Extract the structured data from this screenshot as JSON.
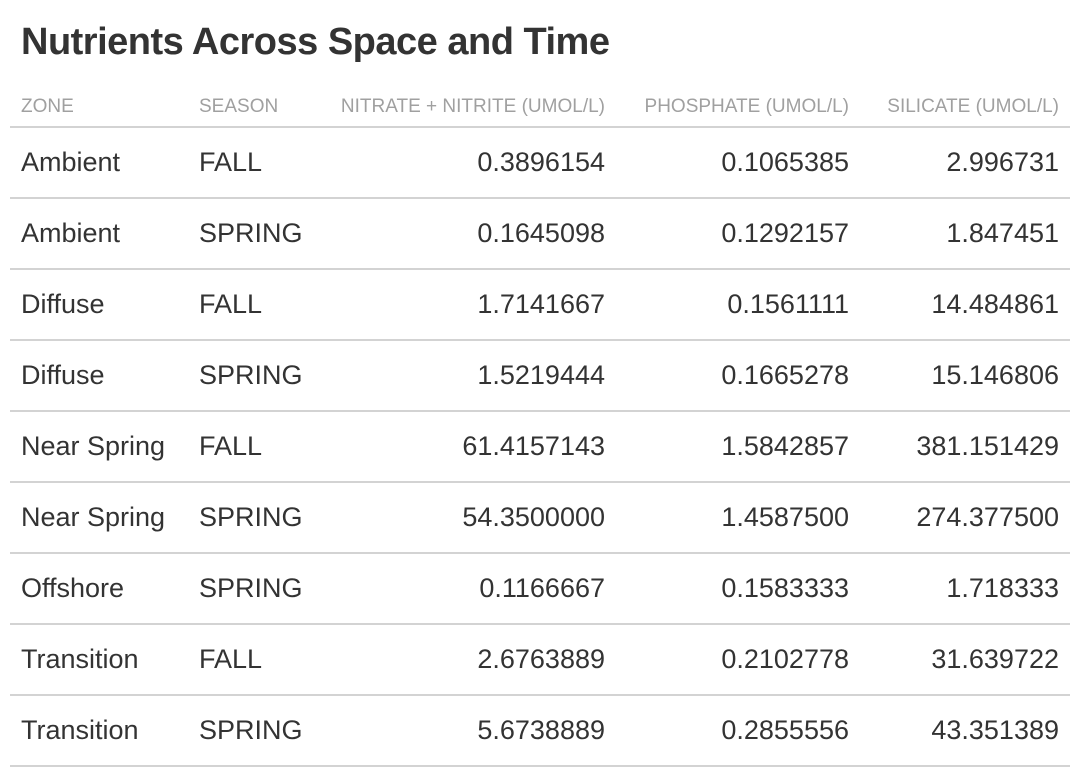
{
  "chart_data": {
    "type": "table",
    "title": "Nutrients Across Space and Time",
    "columns": [
      {
        "key": "zone",
        "label": "ZONE",
        "align": "left"
      },
      {
        "key": "season",
        "label": "SEASON",
        "align": "left"
      },
      {
        "key": "nitrate",
        "label": "NITRATE + NITRITE (UMOL/L)",
        "align": "right"
      },
      {
        "key": "phosphate",
        "label": "PHOSPHATE (UMOL/L)",
        "align": "right"
      },
      {
        "key": "silicate",
        "label": "SILICATE (UMOL/L)",
        "align": "right"
      }
    ],
    "rows": [
      {
        "zone": "Ambient",
        "season": "FALL",
        "nitrate": "0.3896154",
        "phosphate": "0.1065385",
        "silicate": "2.996731"
      },
      {
        "zone": "Ambient",
        "season": "SPRING",
        "nitrate": "0.1645098",
        "phosphate": "0.1292157",
        "silicate": "1.847451"
      },
      {
        "zone": "Diffuse",
        "season": "FALL",
        "nitrate": "1.7141667",
        "phosphate": "0.1561111",
        "silicate": "14.484861"
      },
      {
        "zone": "Diffuse",
        "season": "SPRING",
        "nitrate": "1.5219444",
        "phosphate": "0.1665278",
        "silicate": "15.146806"
      },
      {
        "zone": "Near Spring",
        "season": "FALL",
        "nitrate": "61.4157143",
        "phosphate": "1.5842857",
        "silicate": "381.151429"
      },
      {
        "zone": "Near Spring",
        "season": "SPRING",
        "nitrate": "54.3500000",
        "phosphate": "1.4587500",
        "silicate": "274.377500"
      },
      {
        "zone": "Offshore",
        "season": "SPRING",
        "nitrate": "0.1166667",
        "phosphate": "0.1583333",
        "silicate": "1.718333"
      },
      {
        "zone": "Transition",
        "season": "FALL",
        "nitrate": "2.6763889",
        "phosphate": "0.2102778",
        "silicate": "31.639722"
      },
      {
        "zone": "Transition",
        "season": "SPRING",
        "nitrate": "5.6738889",
        "phosphate": "0.2855556",
        "silicate": "43.351389"
      }
    ]
  },
  "colors": {
    "text": "#333333",
    "header_text": "#a0a0a0",
    "rule": "#d3d3d3",
    "background": "#ffffff"
  }
}
